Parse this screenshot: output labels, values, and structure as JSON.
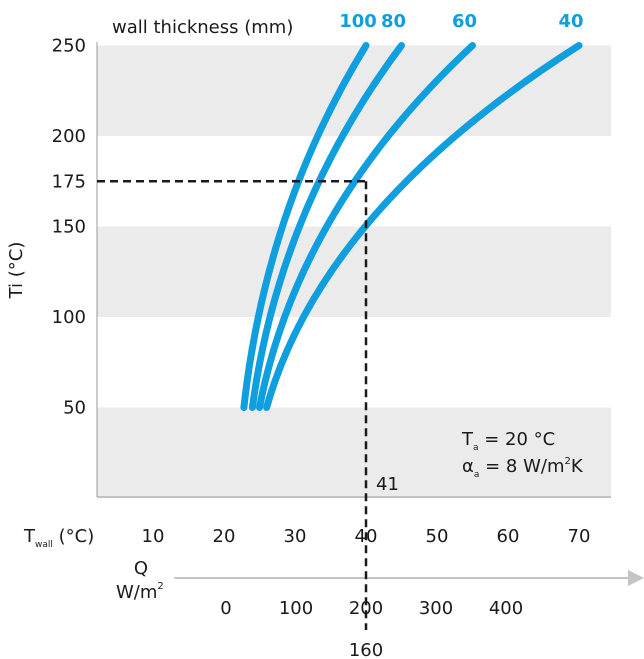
{
  "chart_data": {
    "type": "line",
    "legend_title": "wall thickness (mm)",
    "ylabel": "Ti (°C)",
    "y_ticks": [
      50,
      100,
      150,
      175,
      200,
      250
    ],
    "ylim": [
      0,
      250
    ],
    "x_wall": {
      "label_main": "T",
      "label_sub": "wall",
      "label_tail": " (°C)",
      "ticks": [
        10,
        20,
        30,
        40,
        50,
        60,
        70
      ],
      "lim": [
        5,
        75
      ]
    },
    "x_q": {
      "label_line1": "Q",
      "label_line2_main": "W/m",
      "label_line2_sup": "2",
      "ticks": [
        0,
        100,
        200,
        300,
        400
      ]
    },
    "series": [
      {
        "name": "100",
        "points": [
          [
            22.8,
            50
          ],
          [
            40.0,
            250
          ]
        ]
      },
      {
        "name": "80",
        "points": [
          [
            24.0,
            50
          ],
          [
            45.0,
            250
          ]
        ]
      },
      {
        "name": "60",
        "points": [
          [
            25.0,
            50
          ],
          [
            55.0,
            250
          ]
        ]
      },
      {
        "name": "40",
        "points": [
          [
            26.0,
            50
          ],
          [
            70.0,
            250
          ]
        ]
      }
    ],
    "reference": {
      "y": 175,
      "x_wall": "41",
      "q": "160"
    },
    "annotation": {
      "line1_main": "T",
      "line1_sub": "a",
      "line1_tail": " = 20 °C",
      "line2_main": "α",
      "line2_sub": "a",
      "line2_tail": " = 8 W/m",
      "line2_sup": "2",
      "line2_end": "K"
    },
    "colors": {
      "series": "#0f9fdf",
      "bands": "#ebebeb",
      "axis": "#9a9a9a"
    }
  }
}
